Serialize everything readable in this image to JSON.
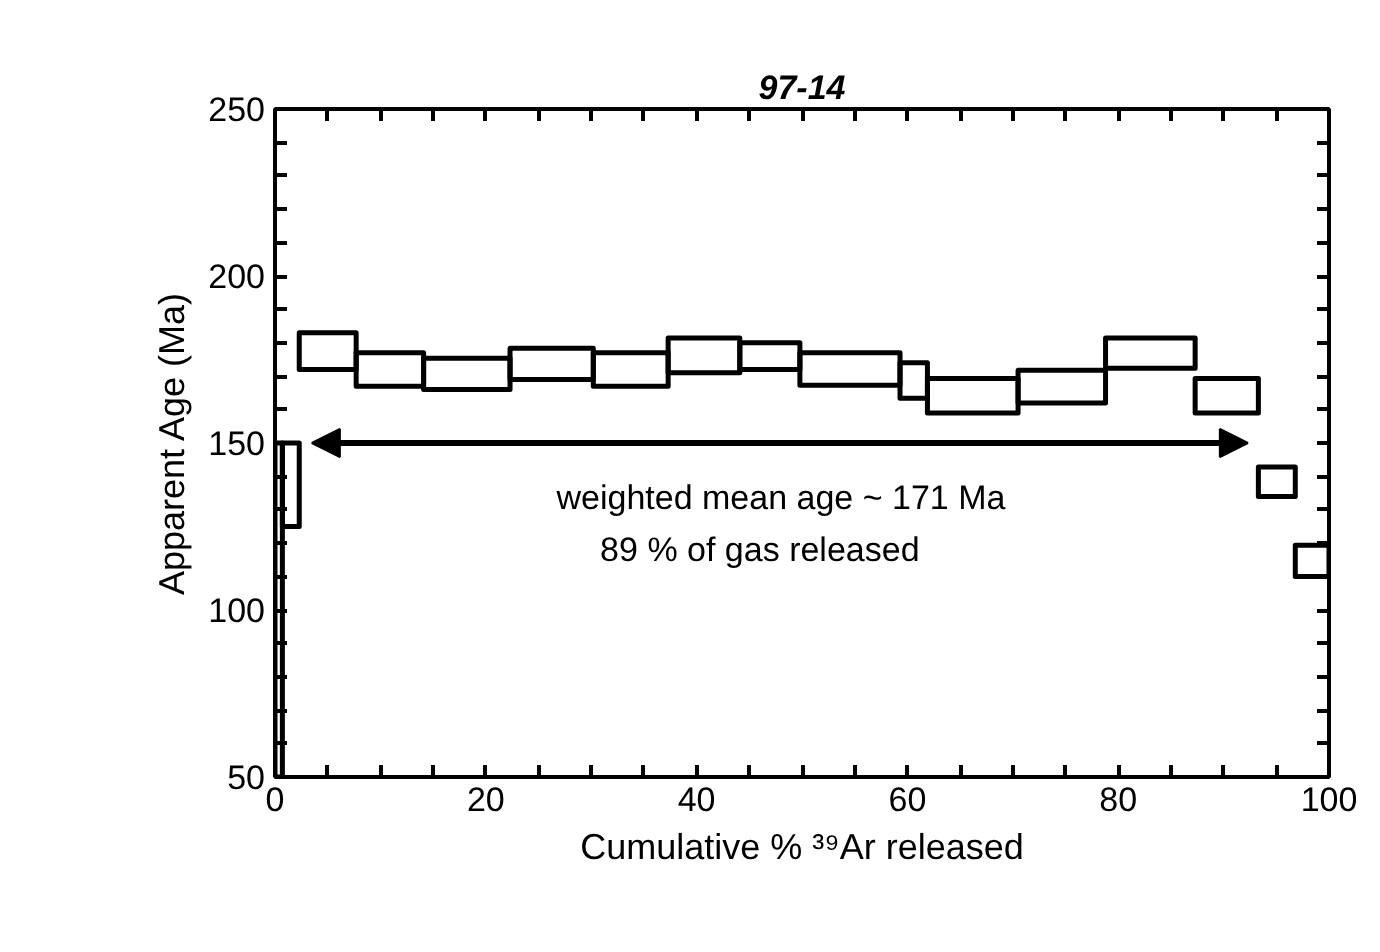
{
  "chart_data": {
    "type": "histogram",
    "title": "97-14",
    "xlabel": "Cumulative % ³⁹Ar released",
    "ylabel": "Apparent Age (Ma)",
    "bins": [
      0,
      0.7,
      2.3,
      7.7,
      14.1,
      22.3,
      30.2,
      37.3,
      44.1,
      49.8,
      59.3,
      61.9,
      70.5,
      78.8,
      87.3,
      93.3,
      96.8,
      100
    ],
    "base": [
      50,
      125,
      172,
      167,
      166,
      169,
      167,
      171,
      172,
      167.3,
      163.4,
      159,
      162,
      172.4,
      159,
      134,
      110
    ],
    "values": [
      100,
      25,
      11,
      10,
      9.4,
      9.4,
      10,
      10.4,
      8,
      9.7,
      10.6,
      10.3,
      9.8,
      9,
      10.3,
      8.8,
      9.4
    ],
    "color": "#000000",
    "xlim": [
      0,
      100
    ],
    "ylim": [
      50,
      250
    ],
    "xticks": [
      0,
      {
        "value": 5,
        "label": null
      },
      {
        "value": 10,
        "label": null
      },
      {
        "value": 15,
        "label": null
      },
      20,
      {
        "value": 25,
        "label": null
      },
      {
        "value": 30,
        "label": null
      },
      {
        "value": 35,
        "label": null
      },
      40,
      {
        "value": 45,
        "label": null
      },
      {
        "value": 50,
        "label": null
      },
      {
        "value": 55,
        "label": null
      },
      60,
      {
        "value": 65,
        "label": null
      },
      {
        "value": 70,
        "label": null
      },
      {
        "value": 75,
        "label": null
      },
      80,
      {
        "value": 85,
        "label": null
      },
      {
        "value": 90,
        "label": null
      },
      {
        "value": 95,
        "label": null
      },
      100
    ],
    "yticks": [
      50,
      {
        "value": 60,
        "label": null
      },
      {
        "value": 70,
        "label": null
      },
      {
        "value": 80,
        "label": null
      },
      {
        "value": 90,
        "label": null
      },
      100,
      {
        "value": 110,
        "label": null
      },
      {
        "value": 120,
        "label": null
      },
      {
        "value": 130,
        "label": null
      },
      {
        "value": 140,
        "label": null
      },
      150,
      {
        "value": 160,
        "label": null
      },
      {
        "value": 170,
        "label": null
      },
      {
        "value": 180,
        "label": null
      },
      {
        "value": 190,
        "label": null
      },
      200,
      {
        "value": 210,
        "label": null
      },
      {
        "value": 220,
        "label": null
      },
      {
        "value": 230,
        "label": null
      },
      {
        "value": 240,
        "label": null
      },
      250
    ],
    "grid": false,
    "ref_lines": [
      {
        "axis": "y",
        "value": 150
      }
    ],
    "annotations": [
      "weighted mean age ~ 171 Ma",
      "89 % of gas released"
    ]
  }
}
